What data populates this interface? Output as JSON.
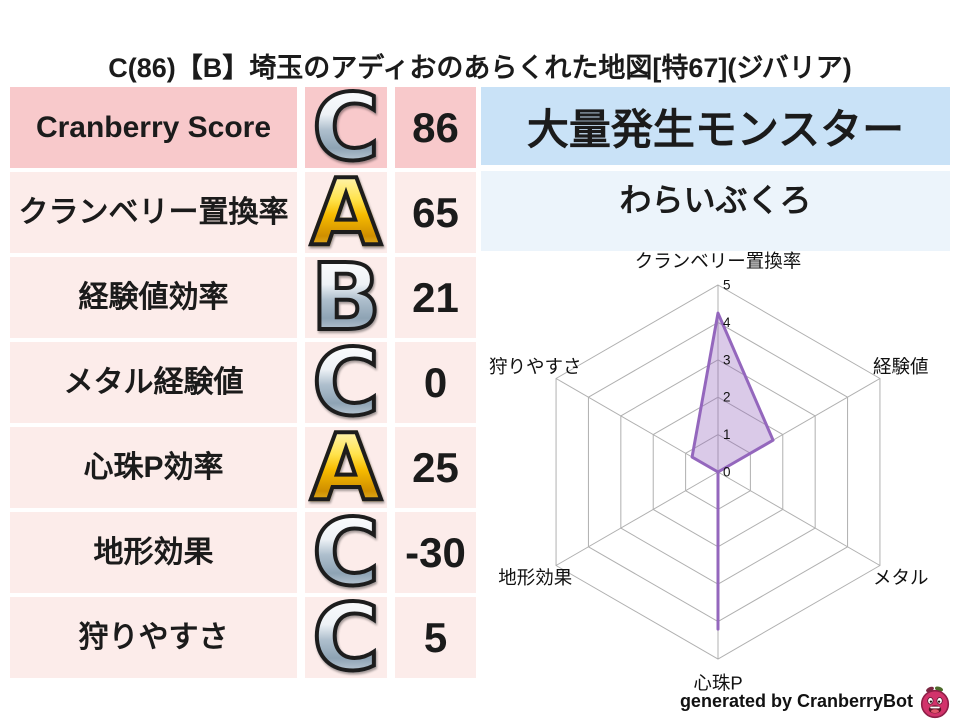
{
  "title": "C(86)【B】埼玉のアディおのあらくれた地図[特67](ジバリア)",
  "stats_table": {
    "rows": [
      {
        "label": "Cranberry Score",
        "grade": "C",
        "grade_style": "silver",
        "value": "86"
      },
      {
        "label": "クランベリー置換率",
        "grade": "A",
        "grade_style": "gold",
        "value": "65"
      },
      {
        "label": "経験値効率",
        "grade": "B",
        "grade_style": "silver",
        "value": "21"
      },
      {
        "label": "メタル経験値",
        "grade": "C",
        "grade_style": "silver",
        "value": "0"
      },
      {
        "label": "心珠P効率",
        "grade": "A",
        "grade_style": "gold",
        "value": "25"
      },
      {
        "label": "地形効果",
        "grade": "C",
        "grade_style": "silver",
        "value": "-30"
      },
      {
        "label": "狩りやすさ",
        "grade": "C",
        "grade_style": "silver",
        "value": "5"
      }
    ],
    "colors": {
      "first_row_bg": "#f8c9cb",
      "row_bg": "#fcecea"
    }
  },
  "monster_panel": {
    "header": "大量発生モンスター",
    "monster_name": "わらいぶくろ",
    "colors": {
      "header_bg": "#c9e2f7",
      "body_bg": "#ecf4fb"
    }
  },
  "chart_data": {
    "type": "radar",
    "categories": [
      "クランベリー置換率",
      "経験値",
      "メタル",
      "心珠P",
      "地形効果",
      "狩りやすさ"
    ],
    "values": [
      4.25,
      1.7,
      0,
      4.2,
      0,
      0.8
    ],
    "tick_labels": [
      "0",
      "1",
      "2",
      "3",
      "4",
      "5"
    ],
    "rmax": 5,
    "grid": "hexagonal rings with spokes",
    "legend": "none",
    "colors": {
      "fill": "rgba(148,103,189,0.35)",
      "stroke": "#9467bd",
      "grid": "#b0b0b0",
      "text": "#111111"
    }
  },
  "footer": {
    "credit": "generated by CranberryBot",
    "icon": "cranberry-bot-icon"
  }
}
